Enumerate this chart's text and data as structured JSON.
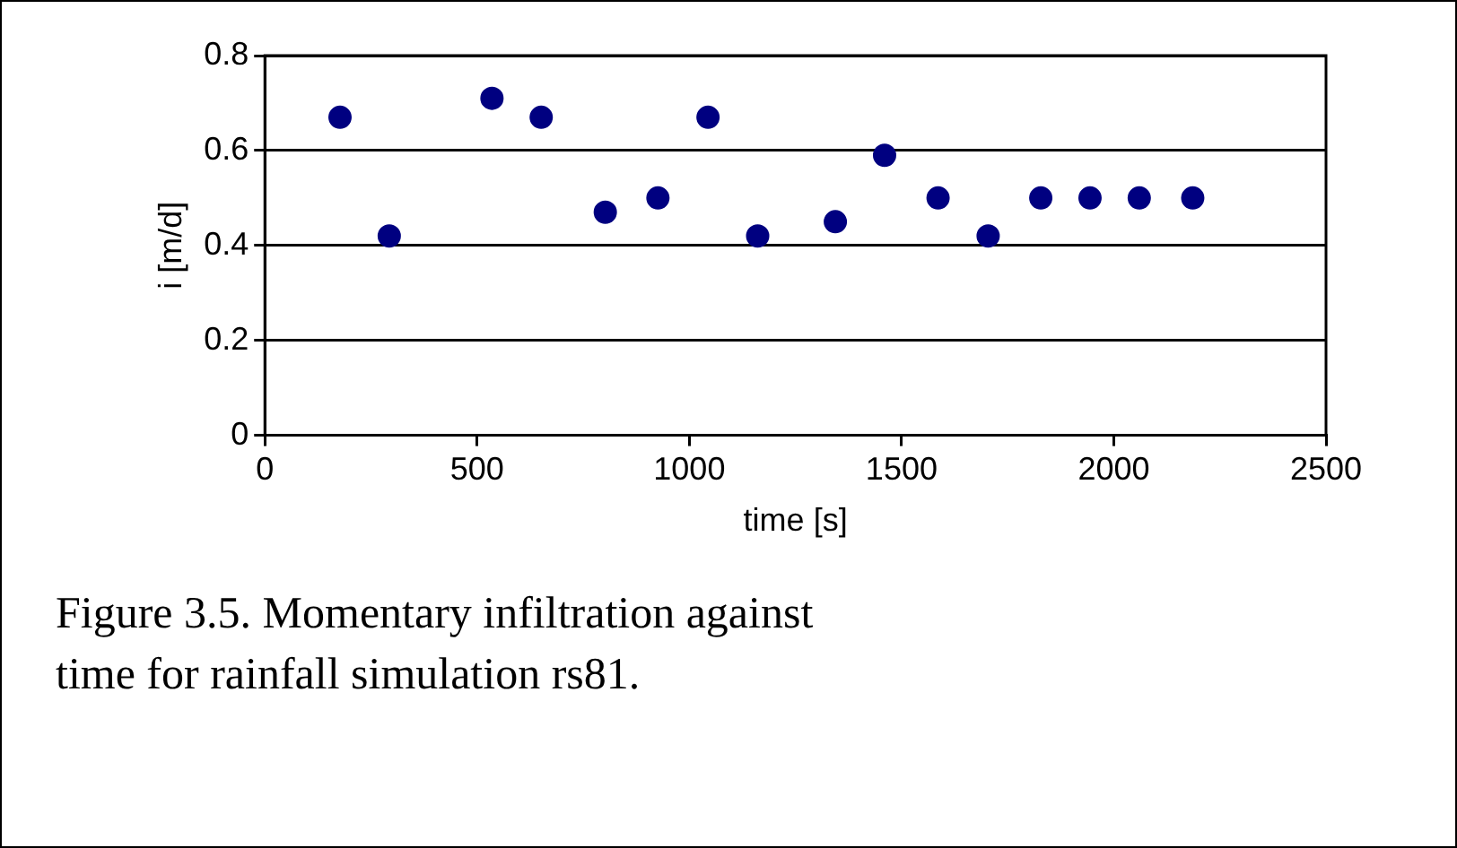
{
  "chart_data": {
    "type": "scatter",
    "xlabel": "time [s]",
    "ylabel": "i [m/d]",
    "x": [
      177,
      293,
      535,
      651,
      802,
      926,
      1044,
      1161,
      1344,
      1460,
      1586,
      1704,
      1828,
      1944,
      2060,
      2186
    ],
    "values": [
      0.67,
      0.42,
      0.71,
      0.67,
      0.47,
      0.5,
      0.67,
      0.42,
      0.45,
      0.59,
      0.5,
      0.42,
      0.5,
      0.5,
      0.5,
      0.5
    ],
    "color": "#000080",
    "marker": "circle",
    "xlim": [
      0,
      2500
    ],
    "xticks": [
      0,
      500,
      1000,
      1500,
      2000,
      2500
    ],
    "ylim": [
      0,
      0.8
    ],
    "yticks": [
      0,
      0.2,
      0.4,
      0.6,
      0.8
    ],
    "grid": "y",
    "legend": false,
    "annotations": [
      "Figure 3.5. Momentary infiltration against time for rainfall simulation rs81."
    ]
  }
}
